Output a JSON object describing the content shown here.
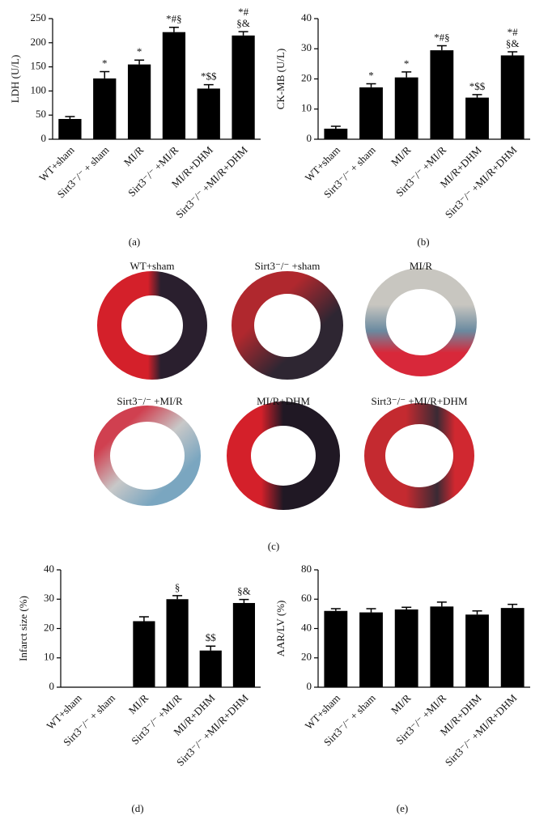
{
  "chart_data": [
    {
      "type": "bar",
      "ylabel": "LDH (U/L)",
      "categories": [
        "WT+sham",
        "Sirt3⁻/⁻ + sham",
        "MI/R",
        "Sirt3⁻/⁻ +MI/R",
        "MI/R+DHM",
        "Sirt3⁻/⁻ +MI/R+DHM"
      ],
      "values": [
        42,
        126,
        155,
        222,
        105,
        215
      ],
      "errors": [
        5,
        14,
        9,
        10,
        8,
        8
      ],
      "annotations": [
        null,
        [
          "*"
        ],
        [
          "*"
        ],
        [
          "*#§"
        ],
        [
          "*$$"
        ],
        [
          "*#",
          "§&"
        ]
      ],
      "color": "#000000",
      "ylim": [
        0,
        250
      ],
      "yticks": [
        0,
        50,
        100,
        150,
        200,
        250
      ]
    },
    {
      "type": "bar",
      "ylabel": "CK-MB (U/L)",
      "categories": [
        "WT+sham",
        "Sirt3⁻/⁻ + sham",
        "MI/R",
        "Sirt3⁻/⁻ +MI/R",
        "MI/R+DHM",
        "Sirt3⁻/⁻ +MI/R+DHM"
      ],
      "values": [
        3.5,
        17.2,
        20.5,
        29.5,
        13.8,
        27.8
      ],
      "errors": [
        0.8,
        1.2,
        1.8,
        1.5,
        1.0,
        1.2
      ],
      "annotations": [
        null,
        [
          "*"
        ],
        [
          "*"
        ],
        [
          "*#§"
        ],
        [
          "*$$"
        ],
        [
          "*#",
          "§&"
        ]
      ],
      "color": "#000000",
      "ylim": [
        0,
        40
      ],
      "yticks": [
        0,
        10,
        20,
        30,
        40
      ]
    },
    {
      "type": "bar",
      "ylabel": "Infarct size (%)",
      "categories": [
        "WT+sham",
        "Sirt3⁻/⁻ + sham",
        "MI/R",
        "Sirt3⁻/⁻ +MI/R",
        "MI/R+DHM",
        "Sirt3⁻/⁻ +MI/R+DHM"
      ],
      "values": [
        null,
        null,
        22.5,
        30,
        12.5,
        28.7
      ],
      "errors": [
        null,
        null,
        1.5,
        1.2,
        1.5,
        1.2
      ],
      "annotations": [
        null,
        null,
        null,
        [
          "§"
        ],
        [
          "$$"
        ],
        [
          "§&"
        ]
      ],
      "color": "#000000",
      "ylim": [
        0,
        40
      ],
      "yticks": [
        0,
        10,
        20,
        30,
        40
      ]
    },
    {
      "type": "bar",
      "ylabel": "AAR/LV (%)",
      "categories": [
        "WT+sham",
        "Sirt3⁻/⁻ + sham",
        "MI/R",
        "Sirt3⁻/⁻ +MI/R",
        "MI/R+DHM",
        "Sirt3⁻/⁻ +MI/R+DHM"
      ],
      "values": [
        52,
        51,
        53,
        55,
        49.5,
        54
      ],
      "errors": [
        1.5,
        2.5,
        1.5,
        3,
        2.5,
        2.5
      ],
      "annotations": [
        null,
        null,
        null,
        null,
        null,
        null
      ],
      "color": "#000000",
      "ylim": [
        0,
        80
      ],
      "yticks": [
        0,
        20,
        40,
        60,
        80
      ]
    }
  ],
  "images": [
    "WT+sham",
    "Sirt3⁻/⁻ +sham",
    "MI/R",
    "Sirt3⁻/⁻ +MI/R",
    "MI/R+DHM",
    "Sirt3⁻/⁻ +MI/R+DHM"
  ],
  "panel_labels": [
    "(a)",
    "(b)",
    "(c)",
    "(d)",
    "(e)"
  ]
}
